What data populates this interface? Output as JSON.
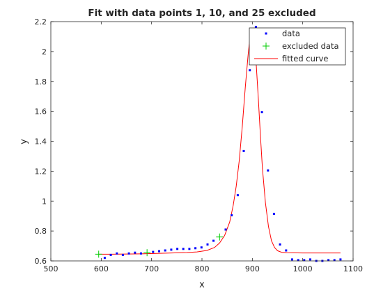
{
  "chart_data": {
    "type": "scatter",
    "title": "Fit with data points 1, 10, and 25 excluded",
    "xlabel": "x",
    "ylabel": "y",
    "xlim": [
      500,
      1100
    ],
    "ylim": [
      0.6,
      2.2
    ],
    "xticks": [
      "500",
      "600",
      "700",
      "800",
      "900",
      "1000",
      "1100"
    ],
    "yticks": [
      "0.6",
      "0.8",
      "1",
      "1.2",
      "1.4",
      "1.6",
      "1.8",
      "2",
      "2.2"
    ],
    "grid": false,
    "legend_position": "top-right",
    "series": [
      {
        "name": "data",
        "marker": "point",
        "color": "#0000ff",
        "x": [
          607,
          619,
          631,
          643,
          655,
          667,
          679,
          703,
          715,
          727,
          739,
          751,
          763,
          775,
          787,
          799,
          811,
          823,
          847,
          859,
          871,
          883,
          895,
          907,
          919,
          931,
          943,
          955,
          967,
          979,
          991,
          1003,
          1015,
          1027,
          1039,
          1051,
          1063,
          1075
        ],
        "y": [
          0.62,
          0.64,
          0.65,
          0.64,
          0.65,
          0.655,
          0.65,
          0.66,
          0.665,
          0.67,
          0.675,
          0.68,
          0.68,
          0.68,
          0.685,
          0.69,
          0.71,
          0.735,
          0.81,
          0.905,
          1.04,
          1.335,
          1.875,
          2.165,
          1.595,
          1.205,
          0.915,
          0.71,
          0.67,
          0.61,
          0.605,
          0.605,
          0.61,
          0.6,
          0.6,
          0.605,
          0.605,
          0.61
        ]
      },
      {
        "name": "excluded data",
        "marker": "plus",
        "color": "#00cc00",
        "x": [
          595,
          691,
          835
        ],
        "y": [
          0.645,
          0.655,
          0.76
        ]
      },
      {
        "name": "fitted curve",
        "marker": "line",
        "color": "#ff0000",
        "x": [
          595,
          620,
          650,
          680,
          710,
          740,
          770,
          790,
          810,
          825,
          835,
          845,
          855,
          862,
          868,
          874,
          880,
          886,
          892,
          896,
          900,
          904,
          908,
          912,
          916,
          920,
          926,
          932,
          938,
          944,
          950,
          958,
          968,
          980,
          1000,
          1020,
          1040,
          1075
        ],
        "y": [
          0.645,
          0.645,
          0.646,
          0.647,
          0.65,
          0.653,
          0.656,
          0.66,
          0.67,
          0.69,
          0.72,
          0.77,
          0.86,
          0.97,
          1.1,
          1.27,
          1.5,
          1.76,
          1.99,
          2.11,
          2.14,
          2.07,
          1.9,
          1.68,
          1.44,
          1.22,
          0.99,
          0.83,
          0.735,
          0.69,
          0.668,
          0.658,
          0.655,
          0.654,
          0.653,
          0.653,
          0.653,
          0.653
        ]
      }
    ]
  }
}
